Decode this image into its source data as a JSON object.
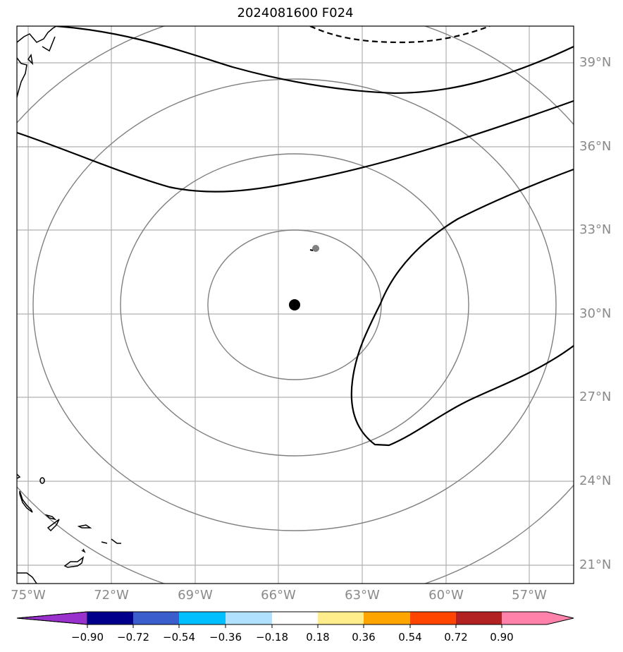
{
  "title": "2024081600 F024",
  "lat_labels": [
    "39°N",
    "36°N",
    "33°N",
    "30°N",
    "27°N",
    "24°N",
    "21°N"
  ],
  "lon_labels": [
    "75°W",
    "72°W",
    "69°W",
    "66°W",
    "63°W",
    "60°W",
    "57°W"
  ],
  "colorbar": {
    "ticks": [
      "−0.90",
      "−0.72",
      "−0.54",
      "−0.36",
      "−0.18",
      "0.18",
      "0.36",
      "0.54",
      "0.72",
      "0.90"
    ],
    "colors": [
      "#9932cc",
      "#00008b",
      "#3a5fcd",
      "#00bfff",
      "#b0e2ff",
      "#ffffff",
      "#ffec8b",
      "#ffa500",
      "#ff4500",
      "#b22222",
      "#ff82ab"
    ]
  },
  "markers": {
    "storm_center": {
      "lon": -65.6,
      "lat": 30.3,
      "color": "#000000"
    },
    "secondary": {
      "lon": -64.8,
      "lat": 32.3,
      "color": "#808080"
    }
  },
  "range_rings": {
    "center_lon": -65.6,
    "center_lat": 30.5,
    "color": "#808080",
    "count": 4
  }
}
